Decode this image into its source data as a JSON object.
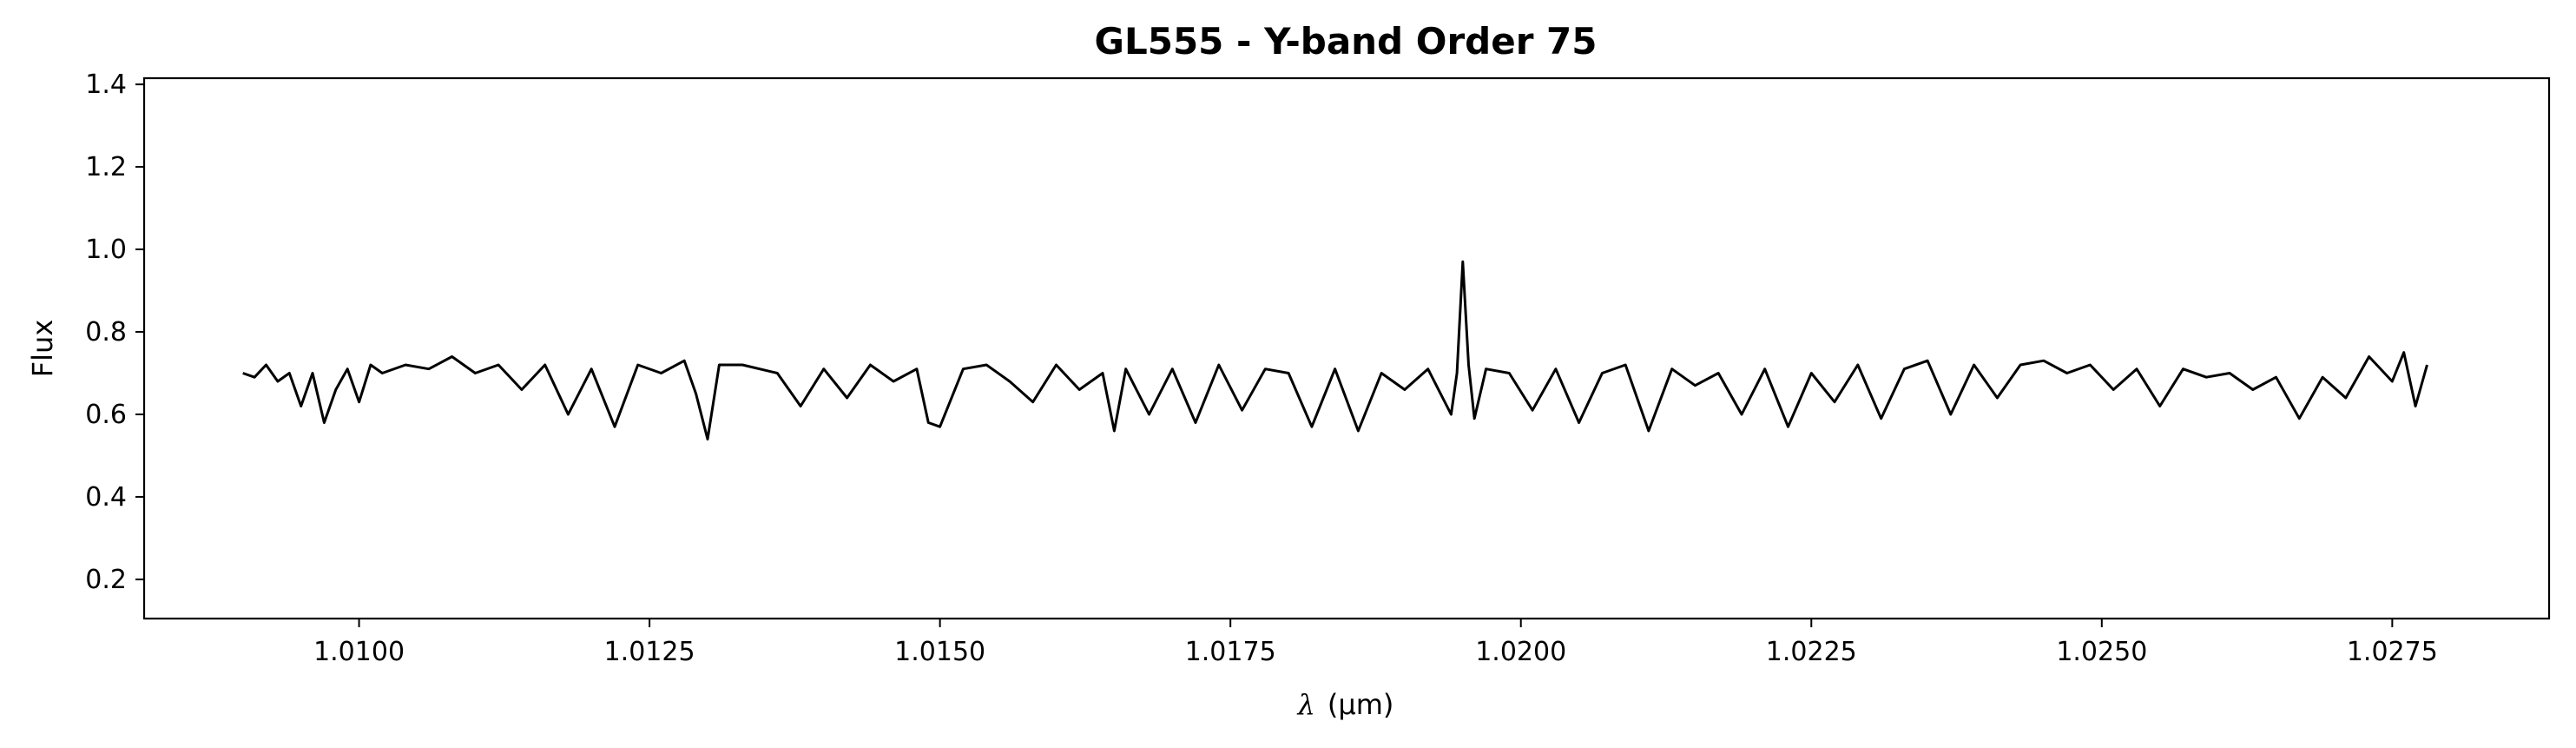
{
  "chart_data": {
    "type": "line",
    "title": "GL555 - Y-band Order 75",
    "xlabel_symbol": "λ",
    "xlabel_unit": "(μm)",
    "ylabel": "Flux",
    "xlim": [
      1.00815,
      1.02885
    ],
    "ylim": [
      0.105,
      1.415
    ],
    "xticks": [
      1.01,
      1.0125,
      1.015,
      1.0175,
      1.02,
      1.0225,
      1.025,
      1.0275
    ],
    "xtick_labels": [
      "1.0100",
      "1.0125",
      "1.0150",
      "1.0175",
      "1.0200",
      "1.0225",
      "1.0250",
      "1.0275"
    ],
    "yticks": [
      0.2,
      0.4,
      0.6,
      0.8,
      1.0,
      1.2,
      1.4
    ],
    "ytick_labels": [
      "0.2",
      "0.4",
      "0.6",
      "0.8",
      "1.0",
      "1.2",
      "1.4"
    ],
    "grid": false,
    "line_color": "#000000",
    "series": [
      {
        "x": [
          1.009,
          1.0091,
          1.0092,
          1.0093,
          1.0094,
          1.0095,
          1.0096,
          1.0097,
          1.0098,
          1.0099,
          1.01,
          1.0101,
          1.0102,
          1.0104,
          1.0106,
          1.0108,
          1.011,
          1.0112,
          1.0114,
          1.0116,
          1.0118,
          1.012,
          1.0122,
          1.0124,
          1.0126,
          1.0128,
          1.0129,
          1.013,
          1.0131,
          1.0133,
          1.0136,
          1.0138,
          1.014,
          1.0142,
          1.0144,
          1.0146,
          1.0148,
          1.0149,
          1.015,
          1.0152,
          1.0154,
          1.0156,
          1.0158,
          1.016,
          1.0162,
          1.0164,
          1.0165,
          1.0166,
          1.0168,
          1.017,
          1.0172,
          1.0174,
          1.0176,
          1.0178,
          1.018,
          1.0182,
          1.0184,
          1.0186,
          1.0188,
          1.019,
          1.0192,
          1.0194,
          1.01945,
          1.0195,
          1.01955,
          1.0196,
          1.0197,
          1.0199,
          1.0201,
          1.0203,
          1.0205,
          1.0207,
          1.0209,
          1.0211,
          1.0213,
          1.0215,
          1.0217,
          1.0219,
          1.0221,
          1.0223,
          1.0225,
          1.0227,
          1.0229,
          1.0231,
          1.0233,
          1.0235,
          1.0237,
          1.0239,
          1.0241,
          1.0243,
          1.0245,
          1.0247,
          1.0249,
          1.0251,
          1.0253,
          1.0255,
          1.0257,
          1.0259,
          1.0261,
          1.0263,
          1.0265,
          1.0267,
          1.0269,
          1.0271,
          1.0273,
          1.0275,
          1.0276,
          1.0277,
          1.0278
        ],
        "y": [
          0.7,
          0.69,
          0.72,
          0.68,
          0.7,
          0.62,
          0.7,
          0.58,
          0.66,
          0.71,
          0.63,
          0.72,
          0.7,
          0.72,
          0.71,
          0.74,
          0.7,
          0.72,
          0.66,
          0.72,
          0.6,
          0.71,
          0.57,
          0.72,
          0.7,
          0.73,
          0.65,
          0.54,
          0.72,
          0.72,
          0.7,
          0.62,
          0.71,
          0.64,
          0.72,
          0.68,
          0.71,
          0.58,
          0.57,
          0.71,
          0.72,
          0.68,
          0.63,
          0.72,
          0.66,
          0.7,
          0.56,
          0.71,
          0.6,
          0.71,
          0.58,
          0.72,
          0.61,
          0.71,
          0.7,
          0.57,
          0.71,
          0.56,
          0.7,
          0.66,
          0.71,
          0.6,
          0.7,
          0.97,
          0.72,
          0.59,
          0.71,
          0.7,
          0.61,
          0.71,
          0.58,
          0.7,
          0.72,
          0.56,
          0.71,
          0.67,
          0.7,
          0.6,
          0.71,
          0.57,
          0.7,
          0.63,
          0.72,
          0.59,
          0.71,
          0.73,
          0.6,
          0.72,
          0.64,
          0.72,
          0.73,
          0.7,
          0.72,
          0.66,
          0.71,
          0.62,
          0.71,
          0.69,
          0.7,
          0.66,
          0.69,
          0.59,
          0.69,
          0.64,
          0.74,
          0.68,
          0.75,
          0.62,
          0.72
        ]
      }
    ]
  }
}
